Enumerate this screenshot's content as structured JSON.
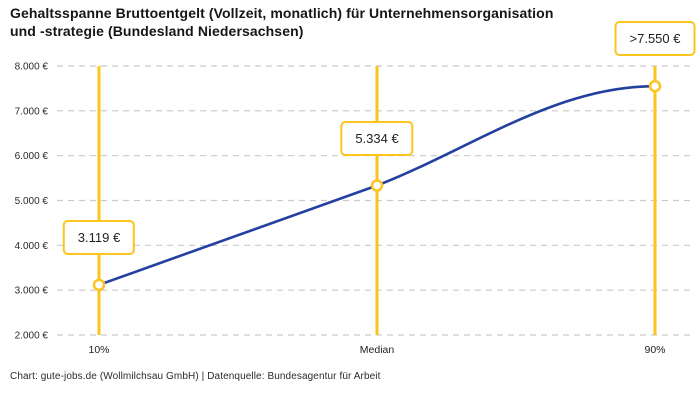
{
  "title": {
    "line1": "Gehaltsspanne Bruttoentgelt (Vollzeit, monatlich) für Unternehmensorganisation",
    "line2": "und -strategie (Bundesland Niedersachsen)"
  },
  "footer": "Chart: gute-jobs.de (Wollmilchsau GmbH) | Datenquelle: Bundesagentur für Arbeit",
  "colors": {
    "accent_yellow": "#FBC51D",
    "line_blue": "#2340A0",
    "grid_gray": "#C9C9C9",
    "text_dark": "#222222"
  },
  "chart_data": {
    "type": "line",
    "title": "Gehaltsspanne Bruttoentgelt (Vollzeit, monatlich) für Unternehmensorganisation und -strategie (Bundesland Niedersachsen)",
    "categories": [
      "10%",
      "Median",
      "90%"
    ],
    "values": [
      3119,
      5334,
      7550
    ],
    "point_labels": [
      "3.119 €",
      "5.334 €",
      ">7.550 €"
    ],
    "y_ticks": [
      {
        "value": 8000,
        "label": "8.000 €"
      },
      {
        "value": 7000,
        "label": "7.000 €"
      },
      {
        "value": 6000,
        "label": "6.000 €"
      },
      {
        "value": 5000,
        "label": "5.000 €"
      },
      {
        "value": 4000,
        "label": "4.000 €"
      },
      {
        "value": 3000,
        "label": "3.000 €"
      },
      {
        "value": 2000,
        "label": "2.000 €"
      }
    ],
    "ylim": [
      2000,
      8000
    ],
    "xlabel": "",
    "ylabel": "",
    "grid": "dashed-horizontal",
    "legend": "none",
    "marker_style": "open-circle",
    "percentile_guides": "vertical-yellow-lines"
  }
}
